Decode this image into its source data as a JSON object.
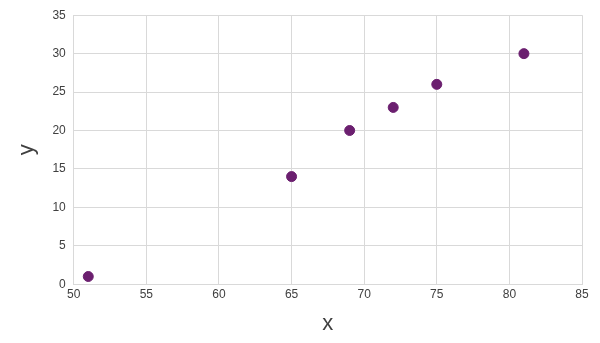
{
  "chart_data": {
    "type": "scatter",
    "x_label": "x",
    "y_label": "y",
    "x": [
      51,
      65,
      69,
      72,
      75,
      81
    ],
    "values": [
      1,
      14,
      20,
      23,
      26,
      30
    ],
    "color": "#6b1f6f",
    "marker": "circle",
    "xlim": [
      50,
      85
    ],
    "xticks": [
      50,
      55,
      60,
      65,
      70,
      75,
      80,
      85
    ],
    "ylim": [
      0,
      35
    ],
    "yticks": [
      0,
      5,
      10,
      15,
      20,
      25,
      30,
      35
    ],
    "grid": true
  }
}
